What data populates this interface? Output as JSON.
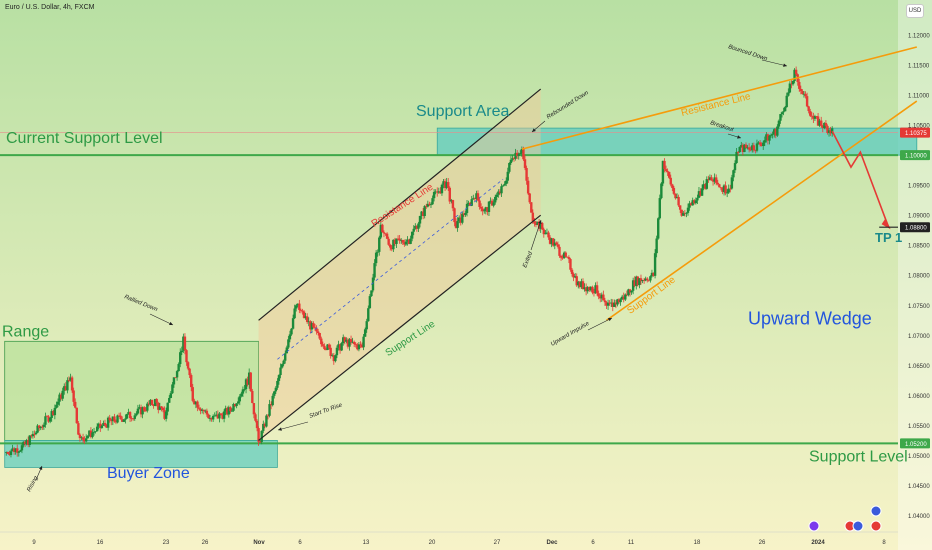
{
  "header": {
    "title": "Euro / U.S. Dollar, 4h, FXCM",
    "currency": "USD"
  },
  "colors": {
    "bg_top": "#b8e0a3",
    "bg_bottom": "#f7f3c8",
    "candle_up": "#1b8a3a",
    "candle_down": "#e53935",
    "support_green": "#3ea84a",
    "teal_zone": "#61cdbf",
    "orange": "#f59c0b",
    "red_arrow": "#e53935",
    "wedge_blue": "#2255dd"
  },
  "chart_data": {
    "type": "candlestick",
    "y_axis": {
      "ylim": [
        1.03725,
        1.1225
      ],
      "tick_labels": [
        "1.12000",
        "1.11500",
        "1.11000",
        "1.10500",
        "1.10000",
        "1.09500",
        "1.09000",
        "1.08500",
        "1.08000",
        "1.07500",
        "1.07000",
        "1.06500",
        "1.06000",
        "1.05500",
        "1.05000",
        "1.04500",
        "1.04000"
      ],
      "marked": [
        {
          "value": 1.10375,
          "label": "1.10375",
          "color": "#e53935"
        },
        {
          "value": 1.1,
          "label": "1.10000",
          "color": "#3ea84a"
        },
        {
          "value": 1.088,
          "label": "1.08800",
          "color": "#222222"
        },
        {
          "value": 1.052,
          "label": "1.05200",
          "color": "#3ea84a"
        }
      ]
    },
    "x_axis": {
      "tick_labels": [
        "9",
        "16",
        "23",
        "26",
        "Nov",
        "6",
        "13",
        "20",
        "27",
        "Dec",
        "6",
        "11",
        "18",
        "26",
        "2024",
        "8"
      ],
      "range": [
        "Oct 9 2023",
        "Jan 8 2024"
      ]
    },
    "path_waypoints": [
      {
        "date": "Oct 5",
        "price": 1.0505
      },
      {
        "date": "Oct 7",
        "price": 1.0515
      },
      {
        "date": "Oct 10",
        "price": 1.057
      },
      {
        "date": "Oct 12",
        "price": 1.063
      },
      {
        "date": "Oct 13",
        "price": 1.0525
      },
      {
        "date": "Oct 16",
        "price": 1.0555
      },
      {
        "date": "Oct 19",
        "price": 1.057
      },
      {
        "date": "Oct 21",
        "price": 1.059
      },
      {
        "date": "Oct 22",
        "price": 1.0565
      },
      {
        "date": "Oct 24",
        "price": 1.069
      },
      {
        "date": "Oct 25",
        "price": 1.0595
      },
      {
        "date": "Oct 27",
        "price": 1.056
      },
      {
        "date": "Oct 29",
        "price": 1.0575
      },
      {
        "date": "Oct 31",
        "price": 1.063
      },
      {
        "date": "Nov 1",
        "price": 1.052
      },
      {
        "date": "Nov 3",
        "price": 1.062
      },
      {
        "date": "Nov 5",
        "price": 1.075
      },
      {
        "date": "Nov 7",
        "price": 1.0705
      },
      {
        "date": "Nov 9",
        "price": 1.0665
      },
      {
        "date": "Nov 10",
        "price": 1.069
      },
      {
        "date": "Nov 12",
        "price": 1.068
      },
      {
        "date": "Nov 14",
        "price": 1.088
      },
      {
        "date": "Nov 15",
        "price": 1.085
      },
      {
        "date": "Nov 17",
        "price": 1.086
      },
      {
        "date": "Nov 19",
        "price": 1.092
      },
      {
        "date": "Nov 21",
        "price": 1.0955
      },
      {
        "date": "Nov 22",
        "price": 1.088
      },
      {
        "date": "Nov 24",
        "price": 1.0935
      },
      {
        "date": "Nov 25",
        "price": 1.0905
      },
      {
        "date": "Nov 27",
        "price": 1.0945
      },
      {
        "date": "Nov 28",
        "price": 1.1
      },
      {
        "date": "Nov 29",
        "price": 1.101
      },
      {
        "date": "Nov 30",
        "price": 1.09
      },
      {
        "date": "Dec 1",
        "price": 1.088
      },
      {
        "date": "Dec 4",
        "price": 1.082
      },
      {
        "date": "Dec 5",
        "price": 1.0785
      },
      {
        "date": "Dec 7",
        "price": 1.0775
      },
      {
        "date": "Dec 8",
        "price": 1.0745
      },
      {
        "date": "Dec 10",
        "price": 1.0765
      },
      {
        "date": "Dec 11",
        "price": 1.079
      },
      {
        "date": "Dec 13",
        "price": 1.08
      },
      {
        "date": "Dec 14",
        "price": 1.099
      },
      {
        "date": "Dec 16",
        "price": 1.09
      },
      {
        "date": "Dec 19",
        "price": 1.096
      },
      {
        "date": "Dec 21",
        "price": 1.094
      },
      {
        "date": "Dec 22",
        "price": 1.101
      },
      {
        "date": "Dec 24",
        "price": 1.1015
      },
      {
        "date": "Dec 26",
        "price": 1.104
      },
      {
        "date": "Dec 28",
        "price": 1.1135
      },
      {
        "date": "Dec 30",
        "price": 1.106
      },
      {
        "date": "Jan 1",
        "price": 1.104
      }
    ],
    "projection": [
      {
        "date": "Jan 1",
        "price": 1.104
      },
      {
        "date": "Jan 3",
        "price": 1.098
      },
      {
        "date": "Jan 4",
        "price": 1.1005
      },
      {
        "date": "Jan 7",
        "price": 1.088
      }
    ],
    "trendlines": [
      {
        "name": "channel-upper",
        "from": {
          "date": "Nov 1",
          "price": 1.0725
        },
        "to": {
          "date": "Dec 1",
          "price": 1.111
        }
      },
      {
        "name": "channel-lower",
        "from": {
          "date": "Nov 1",
          "price": 1.0525
        },
        "to": {
          "date": "Dec 1",
          "price": 1.09
        }
      },
      {
        "name": "wedge-resistance",
        "from": {
          "date": "Nov 29",
          "price": 1.101
        },
        "to": {
          "date": "Jan 10",
          "price": 1.118
        }
      },
      {
        "name": "wedge-support",
        "from": {
          "date": "Dec 8",
          "price": 1.0725
        },
        "to": {
          "date": "Jan 10",
          "price": 1.109
        }
      }
    ],
    "zones": [
      {
        "name": "range",
        "from": "Oct 5",
        "to": "Nov 1",
        "low": 1.0525,
        "high": 1.069
      },
      {
        "name": "buyer-zone",
        "from": "Oct 5",
        "to": "Nov 3",
        "low": 1.048,
        "high": 1.0525
      },
      {
        "name": "support-area",
        "from": "Nov 20",
        "to": "Jan 10",
        "low": 1.1,
        "high": 1.1045
      }
    ],
    "levels": [
      {
        "name": "current-support-level",
        "value": 1.1
      },
      {
        "name": "support-level",
        "value": 1.052
      },
      {
        "name": "tp1",
        "value": 1.088,
        "from": "Jan 6"
      }
    ],
    "annotations": {
      "range": "Range",
      "buyer_zone": "Buyer Zone",
      "current_support": "Current Support Level",
      "support_area": "Support Area",
      "support_level": "Support Level",
      "resistance_line_channel": "Resistance Line",
      "support_line_channel": "Support Line",
      "resistance_line_wedge": "Resistance Line",
      "support_line_wedge": "Support Line",
      "upward_wedge": "Upward Wedge",
      "tp1": "TP 1",
      "rallied_down": "Rallied Down",
      "start_to_rise": "Start To Rise",
      "rebounded_down": "Rebounded Down",
      "exited": "Exited",
      "upward_impulse": "Upward Impulse",
      "breakout": "Breakout",
      "bounced_down": "Bounced Down",
      "rising": "Rising"
    }
  }
}
